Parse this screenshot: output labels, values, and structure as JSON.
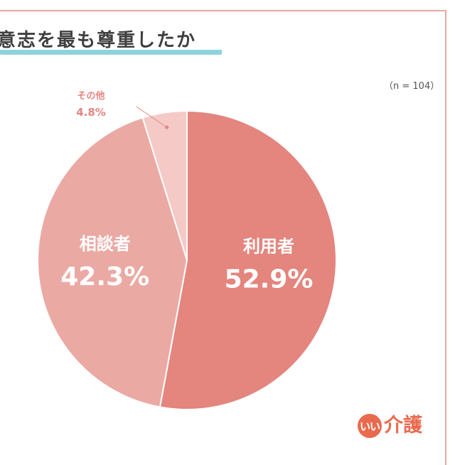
{
  "header": {
    "title": "意志を最も尊重したか",
    "sample_size": "（n = 104）"
  },
  "chart_data": {
    "type": "pie",
    "categories": [
      "利用者",
      "相談者",
      "その他"
    ],
    "values": [
      52.9,
      42.3,
      4.8
    ],
    "value_labels": [
      "52.9%",
      "42.3%",
      "4.8%"
    ],
    "start": "12 o'clock",
    "direction": "clockwise",
    "colors": [
      "#e4857e",
      "#eba9a4",
      "#f4c9c6"
    ],
    "label_color": "#ffffff",
    "other_label_color": "#e4857e",
    "legend": "none"
  },
  "logo": {
    "badge": "いい",
    "text": "介護",
    "color": "#ea6a4e"
  }
}
